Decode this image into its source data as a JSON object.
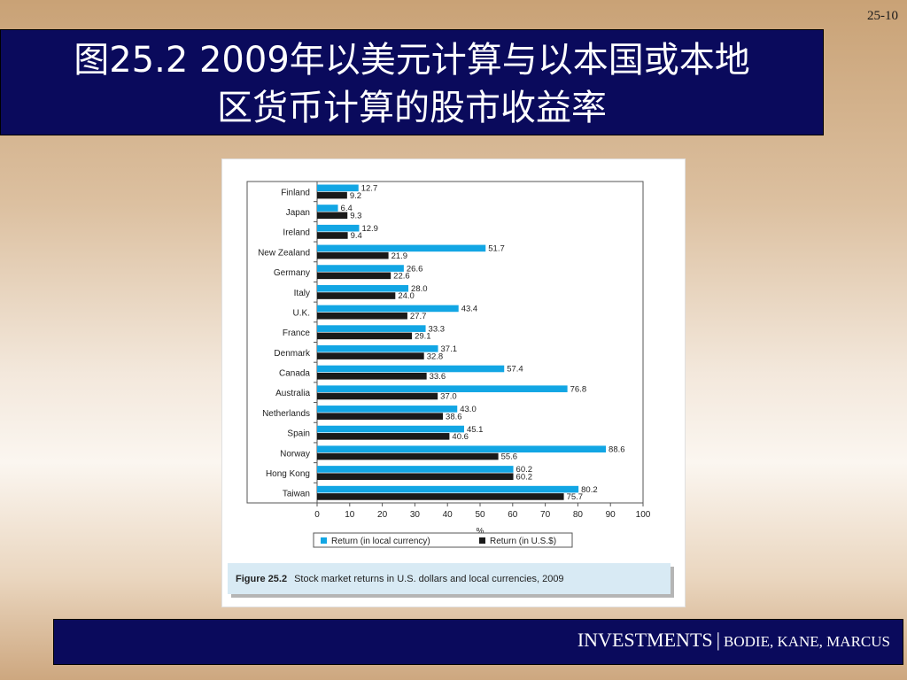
{
  "slide": {
    "number": "25-10",
    "title_line1": "图25.2   2009年以美元计算与以本国或本地",
    "title_line2": "区货币计算的股市收益率",
    "footer_brand": "INVESTMENTS",
    "footer_sep": "|",
    "footer_authors": "BODIE, KANE, MARCUS"
  },
  "caption": {
    "number": "Figure 25.2",
    "text": "Stock market returns in U.S. dollars and local currencies, 2009"
  },
  "colors": {
    "local": "#12a6e4",
    "usd": "#1a1a1a",
    "title_bg": "#0a0a5c"
  },
  "chart_data": {
    "type": "bar",
    "orientation": "horizontal",
    "categories": [
      "Finland",
      "Japan",
      "Ireland",
      "New Zealand",
      "Germany",
      "Italy",
      "U.K.",
      "France",
      "Denmark",
      "Canada",
      "Australia",
      "Netherlands",
      "Spain",
      "Norway",
      "Hong Kong",
      "Taiwan"
    ],
    "series": [
      {
        "name": "Return (in local currency)",
        "color": "#12a6e4",
        "values": [
          12.7,
          6.4,
          12.9,
          51.7,
          26.6,
          28.0,
          43.4,
          33.3,
          37.1,
          57.4,
          76.8,
          43.0,
          45.1,
          88.6,
          60.2,
          80.2
        ]
      },
      {
        "name": "Return (in U.S.$)",
        "color": "#1a1a1a",
        "values": [
          9.2,
          9.3,
          9.4,
          21.9,
          22.6,
          24.0,
          27.7,
          29.1,
          32.8,
          33.6,
          37.0,
          38.6,
          40.6,
          55.6,
          60.2,
          75.7
        ]
      }
    ],
    "xlabel": "%",
    "xlim": [
      0,
      100
    ],
    "xticks": [
      0,
      10,
      20,
      30,
      40,
      50,
      60,
      70,
      80,
      90,
      100
    ],
    "legend_position": "bottom",
    "grid": false
  }
}
